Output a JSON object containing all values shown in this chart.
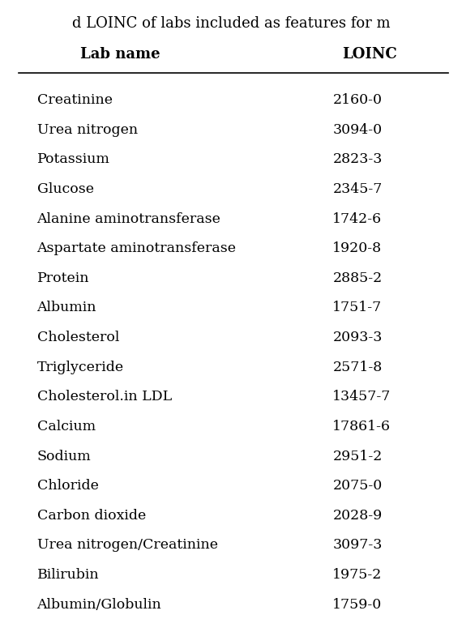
{
  "title_partial": "d LOINC of labs included as features for m",
  "col1_header": "Lab name",
  "col2_header": "LOINC",
  "rows": [
    [
      "Creatinine",
      "2160-0"
    ],
    [
      "Urea nitrogen",
      "3094-0"
    ],
    [
      "Potassium",
      "2823-3"
    ],
    [
      "Glucose",
      "2345-7"
    ],
    [
      "Alanine aminotransferase",
      "1742-6"
    ],
    [
      "Aspartate aminotransferase",
      "1920-8"
    ],
    [
      "Protein",
      "2885-2"
    ],
    [
      "Albumin",
      "1751-7"
    ],
    [
      "Cholesterol",
      "2093-3"
    ],
    [
      "Triglyceride",
      "2571-8"
    ],
    [
      "Cholesterol.in LDL",
      "13457-7"
    ],
    [
      "Calcium",
      "17861-6"
    ],
    [
      "Sodium",
      "2951-2"
    ],
    [
      "Chloride",
      "2075-0"
    ],
    [
      "Carbon dioxide",
      "2028-9"
    ],
    [
      "Urea nitrogen/Creatinine",
      "3097-3"
    ],
    [
      "Bilirubin",
      "1975-2"
    ],
    [
      "Albumin/Globulin",
      "1759-0"
    ]
  ],
  "background_color": "#ffffff",
  "text_color": "#000000",
  "header_fontsize": 13,
  "body_fontsize": 12.5,
  "title_fontsize": 13
}
